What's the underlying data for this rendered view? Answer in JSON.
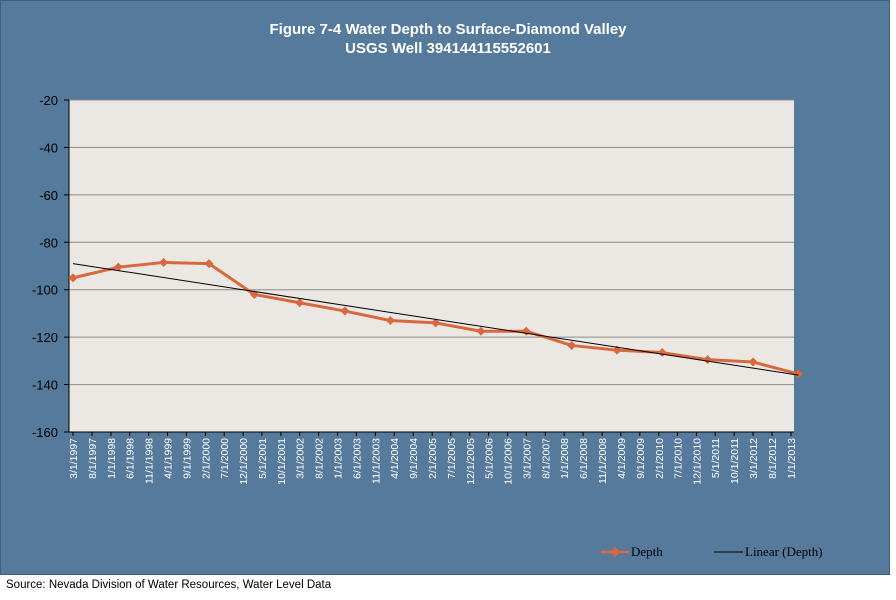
{
  "chart_data": {
    "type": "line",
    "title": "Figure 7-4 Water Depth to Surface-Diamond Valley",
    "subtitle": "USGS Well 394144115552601",
    "xlabel": "",
    "ylabel": "",
    "ylim": [
      -160,
      -20
    ],
    "yticks": [
      -20,
      -40,
      -60,
      -80,
      -100,
      -120,
      -140,
      -160
    ],
    "x_tick_labels": [
      "3/1/1997",
      "8/1/1997",
      "1/1/1998",
      "6/1/1998",
      "11/1/1998",
      "4/1/1999",
      "9/1/1999",
      "2/1/2000",
      "7/1/2000",
      "12/1/2000",
      "5/1/2001",
      "10/1/2001",
      "3/1/2002",
      "8/1/2002",
      "1/1/2003",
      "6/1/2003",
      "11/1/2003",
      "4/1/2004",
      "9/1/2004",
      "2/1/2005",
      "7/1/2005",
      "12/1/2005",
      "5/1/2006",
      "10/1/2006",
      "3/1/2007",
      "8/1/2007",
      "1/1/2008",
      "6/1/2008",
      "11/1/2008",
      "4/1/2009",
      "9/1/2009",
      "2/1/2010",
      "7/1/2010",
      "12/1/2010",
      "5/1/2011",
      "10/1/2011",
      "3/1/2012",
      "8/1/2012",
      "1/1/2013"
    ],
    "grid": true,
    "legend_position": "bottom-right",
    "series": [
      {
        "name": "Depth",
        "color": "#d9683f",
        "marker": "diamond",
        "points": [
          {
            "x": "3/1/1997",
            "y": -95
          },
          {
            "x": "3/1/1998",
            "y": -90.5
          },
          {
            "x": "3/1/1999",
            "y": -88.5
          },
          {
            "x": "3/1/2000",
            "y": -89
          },
          {
            "x": "3/1/2001",
            "y": -102
          },
          {
            "x": "3/1/2002",
            "y": -105.5
          },
          {
            "x": "3/1/2003",
            "y": -109
          },
          {
            "x": "3/1/2004",
            "y": -113
          },
          {
            "x": "3/1/2005",
            "y": -114
          },
          {
            "x": "3/1/2006",
            "y": -117.5
          },
          {
            "x": "3/1/2007",
            "y": -117.5
          },
          {
            "x": "3/1/2008",
            "y": -123.5
          },
          {
            "x": "3/1/2009",
            "y": -125.5
          },
          {
            "x": "3/1/2010",
            "y": -126.5
          },
          {
            "x": "3/1/2011",
            "y": -129.5
          },
          {
            "x": "3/1/2012",
            "y": -130.5
          },
          {
            "x": "3/1/2013",
            "y": -135.5
          }
        ]
      },
      {
        "name": "Linear (Depth)",
        "color": "#000000",
        "marker": "none",
        "points": [
          {
            "x": "3/1/1997",
            "y": -89
          },
          {
            "x": "3/1/2013",
            "y": -136
          }
        ]
      }
    ]
  },
  "source_note": "Source: Nevada Division of Water Resources, Water Level Data"
}
